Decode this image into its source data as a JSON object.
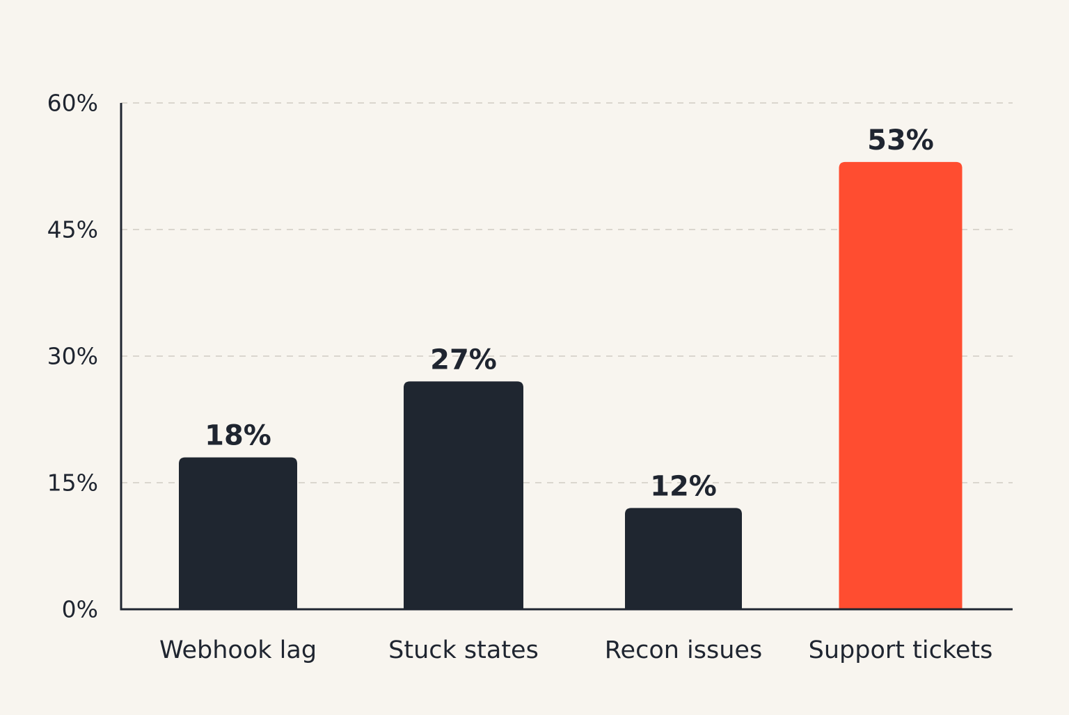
{
  "chart_data": {
    "type": "bar",
    "title": "",
    "xlabel": "",
    "ylabel": "",
    "categories": [
      "Webhook lag",
      "Stuck states",
      "Recon issues",
      "Support tickets"
    ],
    "values": [
      18,
      27,
      12,
      53
    ],
    "value_labels": [
      "18%",
      "27%",
      "12%",
      "53%"
    ],
    "ylim": [
      0,
      60
    ],
    "yticks": [
      0,
      15,
      30,
      45,
      60
    ],
    "ytick_labels": [
      "0%",
      "15%",
      "30%",
      "45%",
      "60%"
    ],
    "grid": true,
    "legend": "none",
    "colors": {
      "default_bar": "#1f2630",
      "highlight_bar": "#ff4d30",
      "highlight_category": "Support tickets",
      "axis": "#1f2530",
      "grid": "#cfcbc4",
      "background": "#f8f5ef"
    }
  }
}
